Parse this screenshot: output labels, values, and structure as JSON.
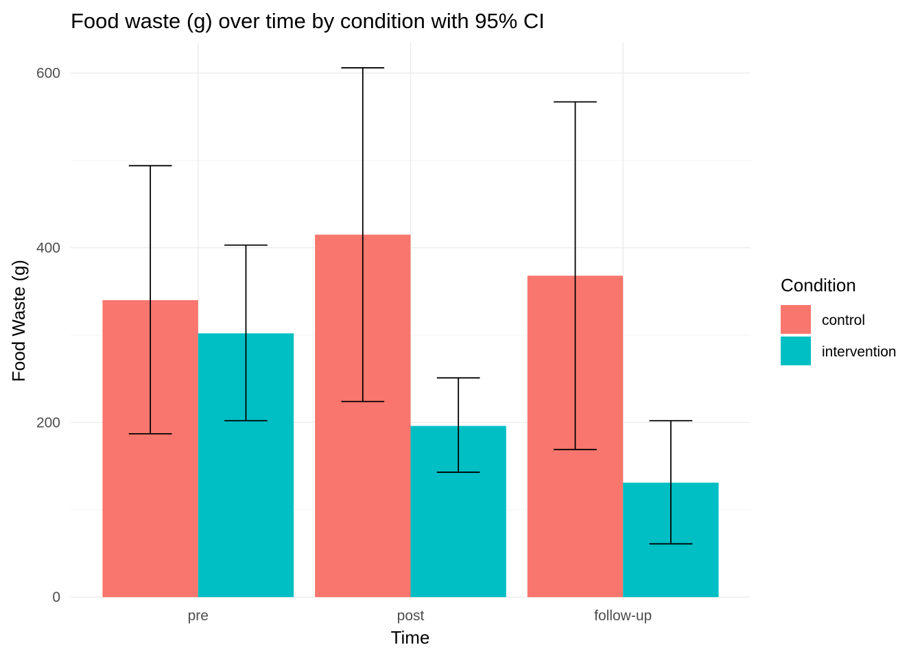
{
  "chart_data": {
    "type": "bar",
    "title": "Food waste (g) over time by condition with 95% CI",
    "xlabel": "Time",
    "ylabel": "Food Waste (g)",
    "categories": [
      "pre",
      "post",
      "follow-up"
    ],
    "ylim": [
      -3,
      635
    ],
    "yticks": [
      0,
      200,
      400,
      600
    ],
    "grid": true,
    "legend": {
      "title": "Condition",
      "placement": "right"
    },
    "series": [
      {
        "name": "control",
        "color": "#F8766D",
        "values": [
          340,
          415,
          368
        ],
        "ci_low": [
          187,
          224,
          169
        ],
        "ci_high": [
          494,
          606,
          567
        ]
      },
      {
        "name": "intervention",
        "color": "#00BFC4",
        "values": [
          302,
          196,
          131
        ],
        "ci_low": [
          202,
          143,
          61
        ],
        "ci_high": [
          403,
          251,
          202
        ]
      }
    ]
  }
}
